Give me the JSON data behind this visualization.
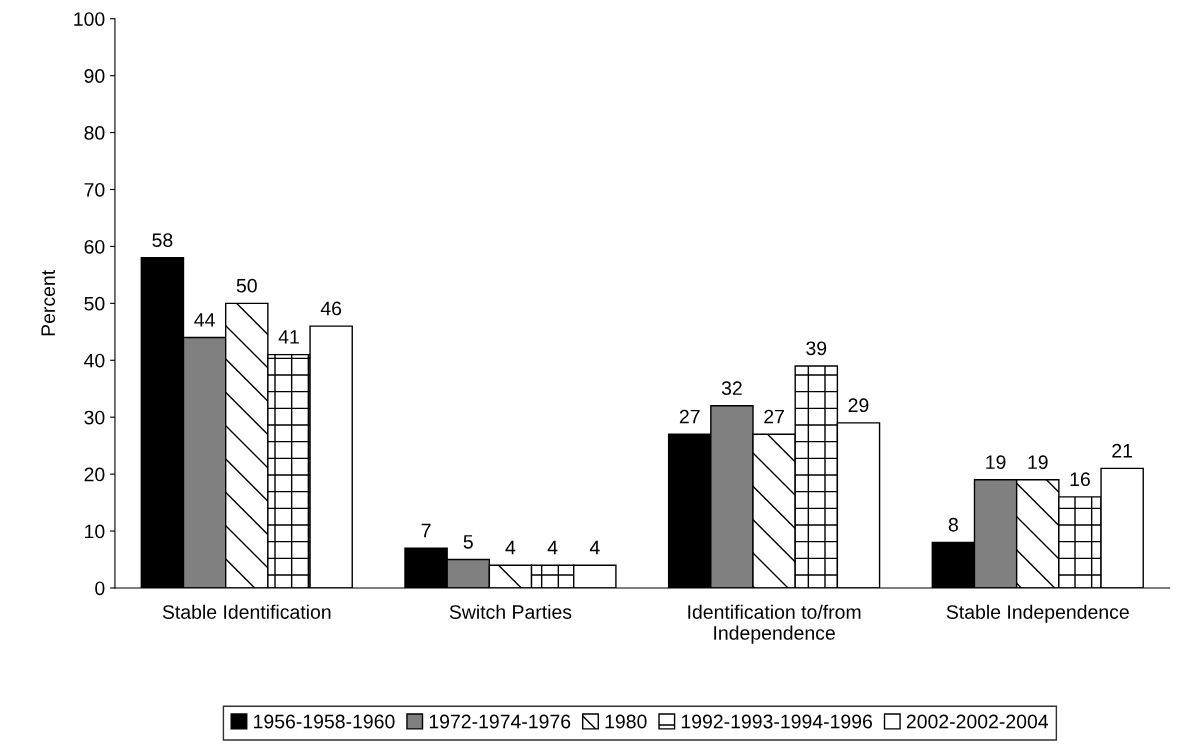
{
  "chart_data": {
    "type": "bar",
    "ylabel": "Percent",
    "categories": [
      "Stable Identification",
      "Switch Parties",
      "Identification to/from\nIndependence",
      "Stable Independence"
    ],
    "series": [
      {
        "name": "1956-1958-1960",
        "color": "#000000",
        "values": [
          58,
          7,
          27,
          8
        ]
      },
      {
        "name": "1972-1974-1976",
        "color": "#808080",
        "values": [
          44,
          5,
          32,
          19
        ]
      },
      {
        "name": "1980",
        "color": "#ffffff",
        "values": [
          50,
          4,
          27,
          19
        ]
      },
      {
        "name": "1992-1993-1994-1996",
        "color": "#ffffff",
        "values": [
          41,
          4,
          39,
          16
        ]
      },
      {
        "name": "2002-2002-2004",
        "color": "#ffffff",
        "values": [
          46,
          4,
          29,
          21
        ]
      }
    ],
    "ylim": [
      0,
      100
    ],
    "yticks": [
      0,
      10,
      20,
      30,
      40,
      50,
      60,
      70,
      80,
      90,
      100
    ],
    "data_labels": true,
    "grid": false,
    "legend": "bottom"
  }
}
